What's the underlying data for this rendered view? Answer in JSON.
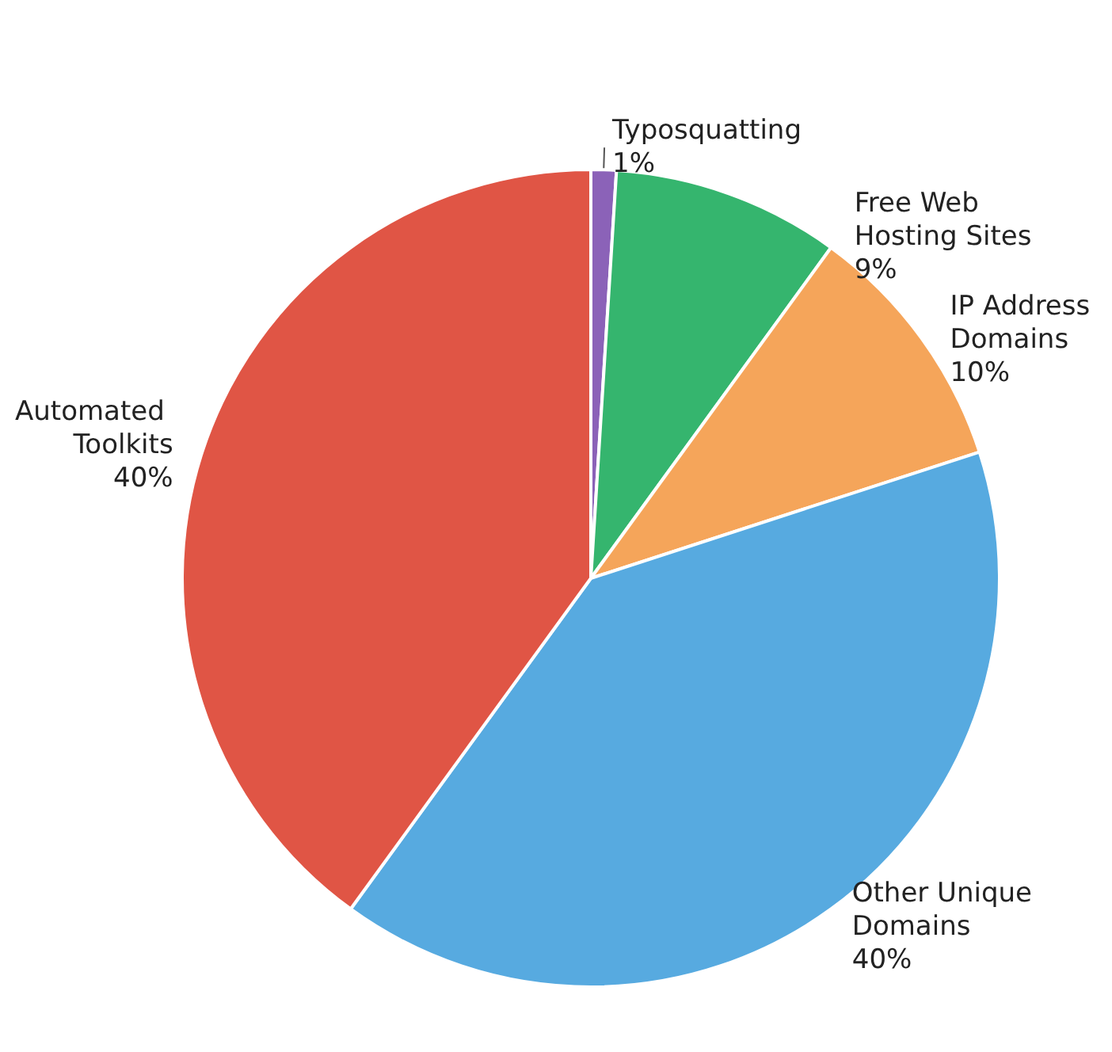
{
  "chart_data": {
    "type": "pie",
    "categories": [
      "Typosquatting",
      "Free Web Hosting Sites",
      "IP Address Domains",
      "Other Unique Domains",
      "Automated Toolkits"
    ],
    "values": [
      1,
      9,
      10,
      40,
      40
    ],
    "value_labels": [
      "1%",
      "9%",
      "10%",
      "40%",
      "40%"
    ],
    "colors": [
      "#8b62b8",
      "#35b56e",
      "#f5a55a",
      "#57aae0",
      "#e05545"
    ]
  }
}
